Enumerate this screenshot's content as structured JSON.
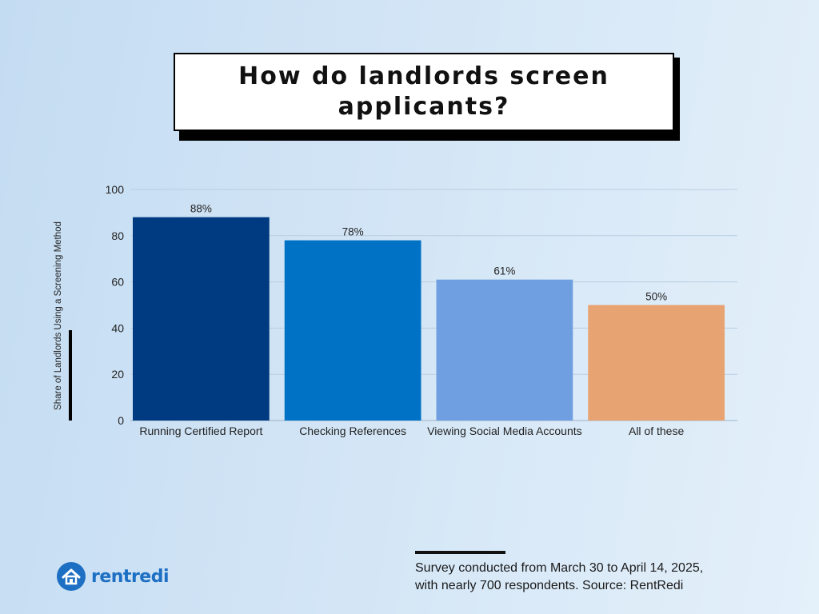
{
  "title": "How do landlords screen applicants?",
  "footer": {
    "line1": "Survey conducted from March 30 to April 14, 2025,",
    "line2": "with nearly 700 respondents. Source: RentRedi"
  },
  "logo": {
    "text": "rentredi",
    "icon": "house-logo-icon"
  },
  "chart_data": {
    "type": "bar",
    "title": "How do landlords screen applicants?",
    "xlabel": "",
    "ylabel": "Share of Landlords Using a Screening Method",
    "ylim": [
      0,
      100
    ],
    "yticks": [
      0,
      20,
      40,
      60,
      80,
      100
    ],
    "grid": true,
    "categories": [
      "Running Certified Report",
      "Checking References",
      "Viewing Social Media Accounts",
      "All of these"
    ],
    "values": [
      88,
      78,
      61,
      50
    ],
    "data_labels": [
      "88%",
      "78%",
      "61%",
      "50%"
    ],
    "colors": [
      "#003a80",
      "#0072c6",
      "#6f9fe0",
      "#e8a372"
    ]
  }
}
